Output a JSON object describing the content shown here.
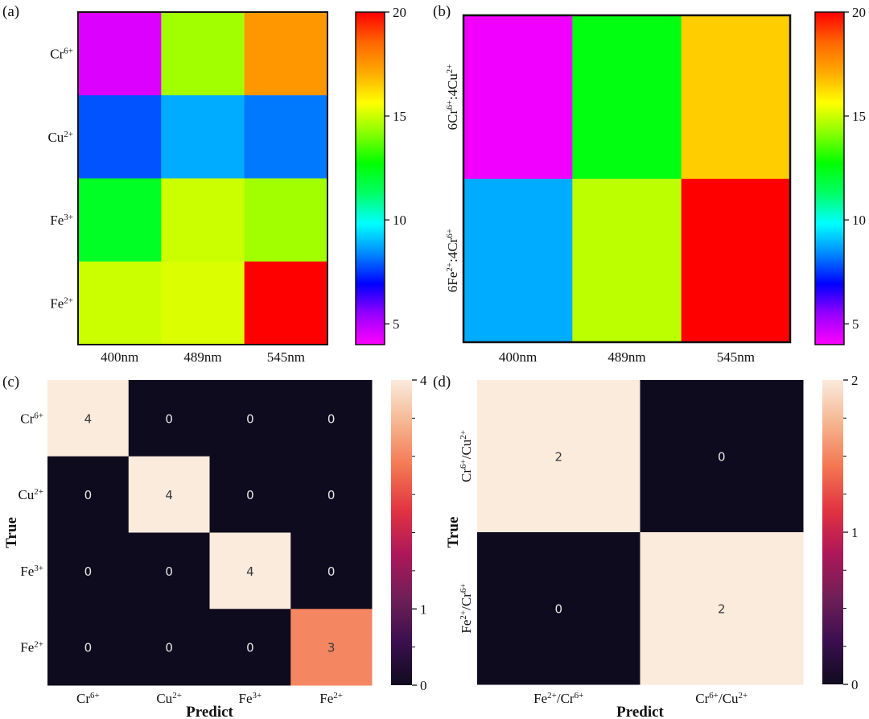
{
  "colorscales": {
    "rainbow": [
      "#ff00ff",
      "#9900ff",
      "#0000ff",
      "#0088ff",
      "#00ffff",
      "#00ff66",
      "#00ff00",
      "#88ff00",
      "#ffff00",
      "#ffaa00",
      "#ff6600",
      "#ff0000"
    ],
    "rocket": [
      "#0f0b1e",
      "#3b0f4f",
      "#701f57",
      "#ad1759",
      "#e13342",
      "#f37651",
      "#f6b48f",
      "#faebdd"
    ]
  },
  "chart_data": [
    {
      "panel": "(a)",
      "type": "heatmap",
      "colormap": "rainbow",
      "x_categories": [
        "400nm",
        "489nm",
        "545nm"
      ],
      "y_categories": [
        "Cr6+",
        "Cu2+",
        "Fe3+",
        "Fe2+"
      ],
      "y_sup": [
        "6+",
        "2+",
        "3+",
        "2+"
      ],
      "y_base": [
        "Cr",
        "Cu",
        "Fe",
        "Fe"
      ],
      "values": [
        [
          4.5,
          14.5,
          17.5
        ],
        [
          7.8,
          8.8,
          8.2
        ],
        [
          12.2,
          15.0,
          14.5
        ],
        [
          15.0,
          15.2,
          20.0
        ]
      ],
      "colorbar": {
        "range": [
          4,
          20
        ],
        "ticks": [
          5,
          10,
          15,
          20
        ]
      }
    },
    {
      "panel": "(b)",
      "type": "heatmap",
      "colormap": "rainbow",
      "x_categories": [
        "400nm",
        "489nm",
        "545nm"
      ],
      "y_categories": [
        "6Cr6+:4Cu2+",
        "6Fe2+:4Cr6+"
      ],
      "y_labels": [
        [
          {
            "t": "6Cr"
          },
          {
            "t": "6+",
            "sup": true
          },
          {
            "t": ":4Cu"
          },
          {
            "t": "2+",
            "sup": true
          }
        ],
        [
          {
            "t": "6Fe"
          },
          {
            "t": "2+",
            "sup": true
          },
          {
            "t": ":4Cr"
          },
          {
            "t": "6+",
            "sup": true
          }
        ]
      ],
      "values": [
        [
          4.2,
          12.5,
          16.5
        ],
        [
          8.8,
          14.8,
          20.0
        ]
      ],
      "colorbar": {
        "range": [
          4,
          20
        ],
        "ticks": [
          5,
          10,
          15,
          20
        ]
      }
    },
    {
      "panel": "(c)",
      "type": "heatmap",
      "subtype": "confusion_matrix",
      "colormap": "rocket",
      "x_categories": [
        "Cr6+",
        "Cu2+",
        "Fe3+",
        "Fe2+"
      ],
      "y_categories": [
        "Cr6+",
        "Cu2+",
        "Fe3+",
        "Fe2+"
      ],
      "base": [
        "Cr",
        "Cu",
        "Fe",
        "Fe"
      ],
      "sup": [
        "6+",
        "2+",
        "3+",
        "2+"
      ],
      "values": [
        [
          4,
          0,
          0,
          0
        ],
        [
          0,
          4,
          0,
          0
        ],
        [
          0,
          0,
          4,
          0
        ],
        [
          0,
          0,
          0,
          3
        ]
      ],
      "xlabel": "Predict",
      "ylabel": "True",
      "colorbar": {
        "range": [
          0,
          4
        ],
        "ticks": [
          0,
          1,
          4
        ]
      }
    },
    {
      "panel": "(d)",
      "type": "heatmap",
      "subtype": "confusion_matrix",
      "colormap": "rocket",
      "x_categories": [
        "Fe2+/Cr6+",
        "Cr6+/Cu2+"
      ],
      "y_categories": [
        "Cr6+/Cu2+",
        "Fe2+/Cr6+"
      ],
      "x_labels": [
        [
          {
            "t": "Fe"
          },
          {
            "t": "2+",
            "sup": true
          },
          {
            "t": "/Cr"
          },
          {
            "t": "6+",
            "sup": true
          }
        ],
        [
          {
            "t": "Cr"
          },
          {
            "t": "6+",
            "sup": true
          },
          {
            "t": "/Cu"
          },
          {
            "t": "2+",
            "sup": true
          }
        ]
      ],
      "y_labels": [
        [
          {
            "t": "Cr"
          },
          {
            "t": "6+",
            "sup": true
          },
          {
            "t": "/Cu"
          },
          {
            "t": "2+",
            "sup": true
          }
        ],
        [
          {
            "t": "Fe"
          },
          {
            "t": "2+",
            "sup": true
          },
          {
            "t": "/Cr"
          },
          {
            "t": "6+",
            "sup": true
          }
        ]
      ],
      "values": [
        [
          2,
          0
        ],
        [
          0,
          2
        ]
      ],
      "xlabel": "Predict",
      "ylabel": "True",
      "colorbar": {
        "range": [
          0,
          2
        ],
        "ticks": [
          0,
          1,
          2
        ]
      }
    }
  ]
}
